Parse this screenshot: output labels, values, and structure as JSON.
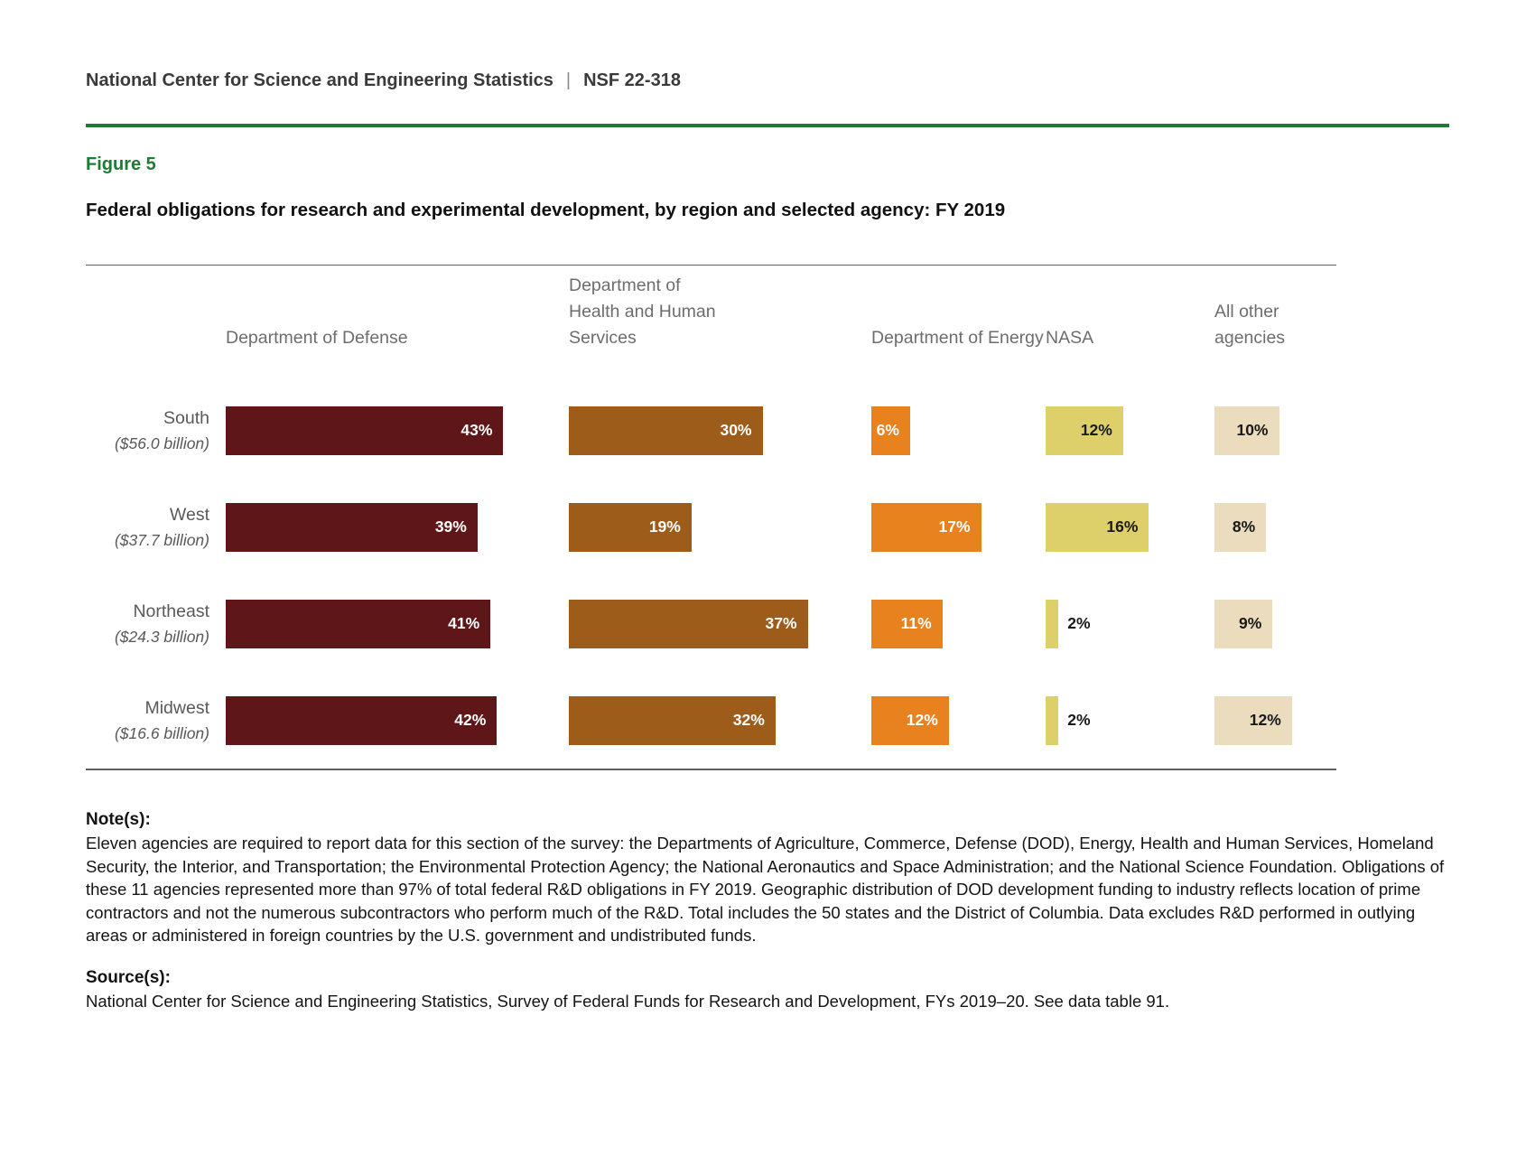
{
  "page": {
    "header_org": "National Center for Science and Engineering Statistics",
    "header_sep": "|",
    "header_report": "NSF 22-318",
    "figure_label": "Figure 5",
    "title": "Federal obligations for research and experimental development, by region and selected agency: FY 2019"
  },
  "colors": {
    "accent_green": "#1E7B34",
    "rule_gray": "#5F5F5F",
    "header_text_gray": "#6D6D6D",
    "row_label_gray": "#595959"
  },
  "chart_data": {
    "type": "bar",
    "orientation": "horizontal",
    "title": "Federal obligations for research and experimental development, by region and selected agency: FY 2019",
    "value_suffix": "%",
    "value_range": [
      0,
      43
    ],
    "grid": false,
    "legend_position": "column-headers-top",
    "categories": [
      "Department of Defense",
      "Department of Health and Human Services",
      "Department of Energy",
      "NASA",
      "All other agencies"
    ],
    "series_colors": [
      "#5E1618",
      "#9E5C1B",
      "#E8821E",
      "#DDD06A",
      "#EADCBC"
    ],
    "label_colors": [
      "#ffffff",
      "#ffffff",
      "#ffffff",
      "#1a1a1a",
      "#1a1a1a"
    ],
    "rows": [
      {
        "region": "South",
        "total": "($56.0 billion)",
        "values": [
          43,
          30,
          6,
          12,
          10
        ]
      },
      {
        "region": "West",
        "total": "($37.7 billion)",
        "values": [
          39,
          19,
          17,
          16,
          8
        ]
      },
      {
        "region": "Northeast",
        "total": "($24.3 billion)",
        "values": [
          41,
          37,
          11,
          2,
          9
        ]
      },
      {
        "region": "Midwest",
        "total": "($16.6 billion)",
        "values": [
          42,
          32,
          12,
          2,
          12
        ]
      }
    ]
  },
  "notes": {
    "heading": "Note(s):",
    "body": "Eleven agencies are required to report data for this section of the survey: the Departments of Agriculture, Commerce, Defense (DOD), Energy, Health and Human Services, Homeland Security, the Interior, and Transportation; the Environmental Protection Agency; the National Aeronautics and Space Administration; and the National Science Foundation. Obligations of these 11 agencies represented more than 97% of total federal R&D obligations in FY 2019. Geographic distribution of DOD development funding to industry reflects location of prime contractors and not the numerous subcontractors who perform much of the R&D. Total includes the 50 states and the District of Columbia. Data excludes R&D performed in outlying areas or administered in foreign countries by the U.S. government and undistributed funds."
  },
  "source": {
    "heading": "Source(s):",
    "body": "National Center for Science and Engineering Statistics, Survey of Federal Funds for Research and Development, FYs 2019–20. See data table 91."
  }
}
